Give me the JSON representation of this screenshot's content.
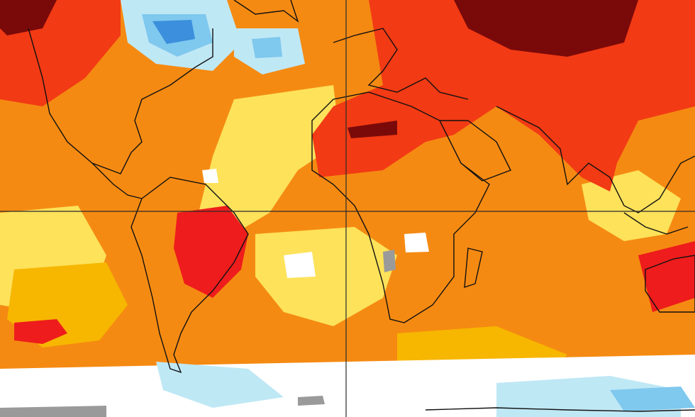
{
  "map": {
    "kind": "temperature-anomaly",
    "palette": {
      "extreme_warm": "#7a0a0a",
      "strong_warm": "#ee1c1c",
      "warm_red": "#f23a14",
      "warm_orange": "#f58a12",
      "moderate_warm": "#f7b600",
      "slight_warm": "#fde25a",
      "near_normal": "#ffffff",
      "slight_cool": "#bfe8f5",
      "cool": "#7fc8ee",
      "strong_cool": "#3b8fdc",
      "no_data": "#9a9a9a",
      "coastline": "#111111",
      "grid_line": "#2a2a2a"
    },
    "grid_lines": [
      "equator",
      "prime-meridian"
    ],
    "regions": [
      "north-america",
      "south-america",
      "greenland",
      "europe",
      "africa",
      "middle-east",
      "asia",
      "southeast-asia",
      "australia",
      "antarctica",
      "madagascar",
      "caribbean"
    ]
  }
}
